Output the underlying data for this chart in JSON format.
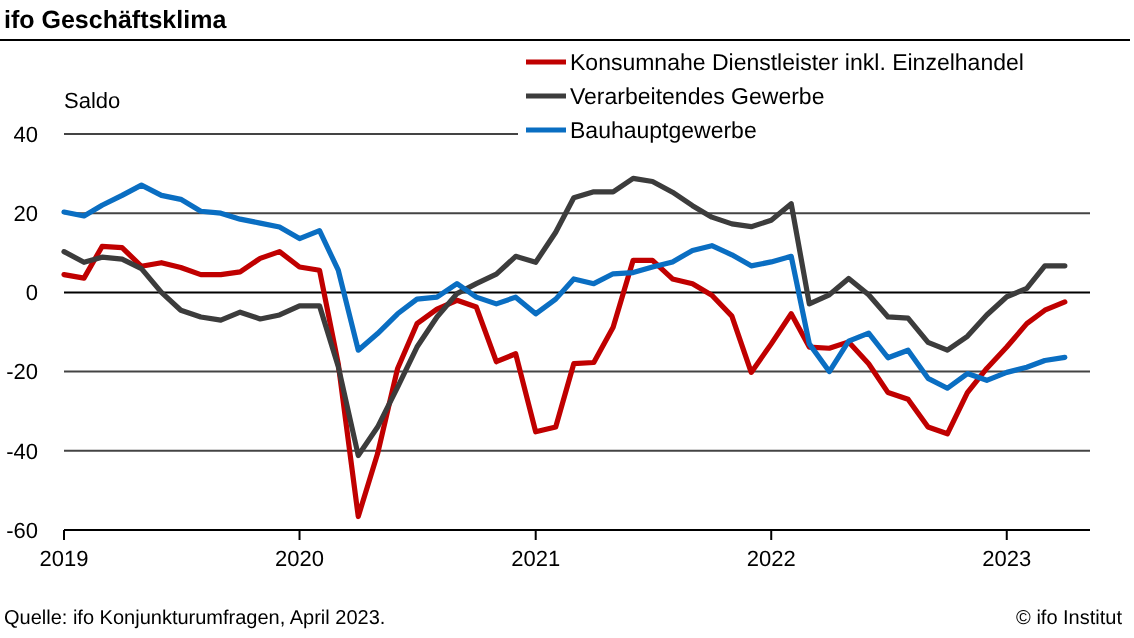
{
  "chart_data": {
    "type": "line",
    "title": "ifo Geschäftsklima",
    "ylabel": "Saldo",
    "x": [
      "2019-01",
      "2019-02",
      "2019-03",
      "2019-04",
      "2019-05",
      "2019-06",
      "2019-07",
      "2019-08",
      "2019-09",
      "2019-10",
      "2019-11",
      "2019-12",
      "2020-01",
      "2020-02",
      "2020-03",
      "2020-04",
      "2020-05",
      "2020-06",
      "2020-07",
      "2020-08",
      "2020-09",
      "2020-10",
      "2020-11",
      "2020-12",
      "2021-01",
      "2021-02",
      "2021-03",
      "2021-04",
      "2021-05",
      "2021-06",
      "2021-07",
      "2021-08",
      "2021-09",
      "2021-10",
      "2021-11",
      "2021-12",
      "2022-01",
      "2022-02",
      "2022-03",
      "2022-04",
      "2022-05",
      "2022-06",
      "2022-07",
      "2022-08",
      "2022-09",
      "2022-10",
      "2022-11",
      "2022-12",
      "2023-01",
      "2023-02",
      "2023-03",
      "2023-04"
    ],
    "series": [
      {
        "name": "Konsumnahe Dienstleister inkl. Einzelhandel",
        "color": "#c00000",
        "values": [
          4.5,
          3.6,
          11.6,
          11.3,
          6.6,
          7.5,
          6.3,
          4.5,
          4.5,
          5.2,
          8.6,
          10.3,
          6.4,
          5.6,
          -18,
          -56.6,
          -40.7,
          -19.2,
          -7.9,
          -4.2,
          -2,
          -3.7,
          -17.5,
          -15.5,
          -35.2,
          -34,
          -18,
          -17.7,
          -8.8,
          8.1,
          8.1,
          3.4,
          2.2,
          -0.7,
          -6,
          -20.2,
          -13,
          -5.4,
          -13.8,
          -14.1,
          -12.5,
          -18,
          -25.3,
          -27,
          -34,
          -35.7,
          -25.3,
          -19.2,
          -13.8,
          -7.9,
          -4.5,
          -2.4
        ]
      },
      {
        "name": "Verarbeitendes Gewerbe",
        "color": "#3c3c3c",
        "values": [
          10.3,
          7.6,
          8.9,
          8.4,
          6,
          0,
          -4.5,
          -6.2,
          -7,
          -5,
          -6.7,
          -5.7,
          -3.4,
          -3.4,
          -18.7,
          -41.2,
          -34,
          -23.9,
          -13.8,
          -6.2,
          -0.3,
          2.2,
          4.6,
          9.1,
          7.6,
          15.2,
          23.9,
          25.4,
          25.4,
          28.8,
          28,
          25.3,
          21.9,
          19,
          17.3,
          16.6,
          18.2,
          22.4,
          -2.9,
          -0.6,
          3.5,
          -0.6,
          -6.2,
          -6.5,
          -12.6,
          -14.6,
          -11.1,
          -5.7,
          -1.1,
          1,
          6.7,
          6.7
        ]
      },
      {
        "name": "Bauhauptgewerbe",
        "color": "#0a6ec2",
        "values": [
          20.3,
          19.3,
          22,
          24.5,
          27.1,
          24.5,
          23.5,
          20.5,
          20,
          18.5,
          17.5,
          16.5,
          13.6,
          15.6,
          5.6,
          -14.6,
          -10.4,
          -5.4,
          -1.7,
          -1.2,
          2.2,
          -1.2,
          -2.9,
          -1.2,
          -5.4,
          -1.7,
          3.4,
          2.2,
          4.7,
          5,
          6.4,
          7.7,
          10.6,
          11.8,
          9.5,
          6.7,
          7.7,
          9.1,
          -13,
          -20,
          -12.3,
          -10.3,
          -16.5,
          -14.6,
          -21.7,
          -24.2,
          -20.5,
          -22.2,
          -20.2,
          -18.9,
          -17.2,
          -16.4
        ]
      }
    ],
    "xlim": [
      "2019-01-01",
      "2023-05-10"
    ],
    "xticks": [
      {
        "value": "2019-01",
        "label": "2019"
      },
      {
        "value": "2020-01",
        "label": "2020"
      },
      {
        "value": "2021-01",
        "label": "2021"
      },
      {
        "value": "2022-01",
        "label": "2022"
      },
      {
        "value": "2023-01",
        "label": "2023"
      }
    ],
    "ylim": [
      -60,
      40
    ],
    "yticks": [
      -60,
      -40,
      -20,
      0,
      20,
      40
    ],
    "grid": "y",
    "legend": "top right",
    "marker": "none",
    "line_style": "solid",
    "annotations": [
      "Quelle: ifo Konjunkturumfragen, April 2023.",
      "© ifo Institut"
    ]
  }
}
